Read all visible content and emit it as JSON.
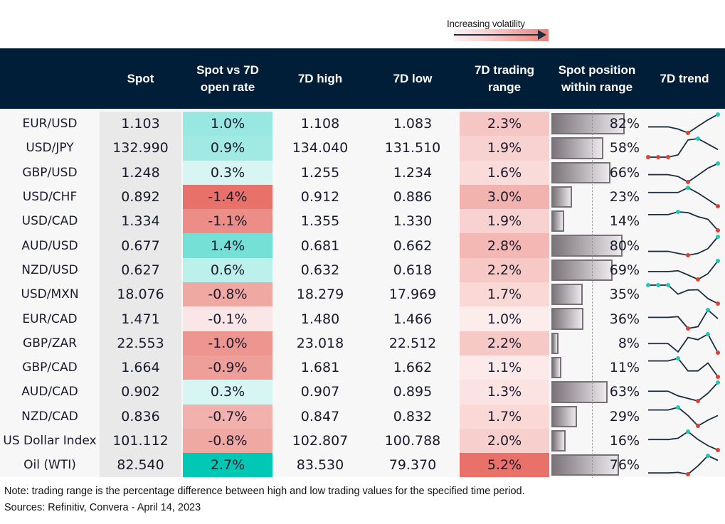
{
  "legend": {
    "label": "Increasing volatility"
  },
  "headers": [
    "",
    "Spot",
    "Spot vs 7D open rate",
    "7D high",
    "7D low",
    "7D trading range",
    "Spot position within range",
    "7D trend"
  ],
  "colors": {
    "header_bg": "#001e38",
    "positive_max": "#00c8b4",
    "negative_max": "#e8726a",
    "range_min": "#fcecec",
    "range_max": "#e8726a",
    "spark_line": "#1c2d3f",
    "spark_max": "#1fc8b4",
    "spark_min": "#e0402f"
  },
  "chart_data": {
    "type": "table",
    "rows": [
      {
        "pair": "EUR/USD",
        "spot": "1.103",
        "vs_open": "1.0%",
        "vs_open_value": 1.0,
        "high": "1.108",
        "low": "1.083",
        "range": "2.3%",
        "range_value": 2.3,
        "position": "82%",
        "position_value": 82,
        "trend": [
          0.33,
          0.33,
          0.33,
          0.21,
          0,
          0.36,
          0.71,
          1
        ]
      },
      {
        "pair": "USD/JPY",
        "spot": "132.990",
        "vs_open": "0.9%",
        "vs_open_value": 0.9,
        "high": "134.040",
        "low": "131.510",
        "range": "1.9%",
        "range_value": 1.9,
        "position": "58%",
        "position_value": 58,
        "trend": [
          0,
          0,
          0,
          0.12,
          0.93,
          1,
          0.71,
          0.41
        ]
      },
      {
        "pair": "GBP/USD",
        "spot": "1.248",
        "vs_open": "0.3%",
        "vs_open_value": 0.3,
        "high": "1.255",
        "low": "1.234",
        "range": "1.6%",
        "range_value": 1.6,
        "position": "66%",
        "position_value": 66,
        "trend": [
          0.4,
          0.4,
          0.4,
          0.3,
          0,
          0.37,
          0.75,
          1
        ]
      },
      {
        "pair": "USD/CHF",
        "spot": "0.892",
        "vs_open": "-1.4%",
        "vs_open_value": -1.4,
        "high": "0.912",
        "low": "0.886",
        "range": "3.0%",
        "range_value": 3.0,
        "position": "23%",
        "position_value": 23,
        "trend": [
          0.74,
          0.74,
          0.74,
          0.74,
          1,
          0.71,
          0.36,
          0
        ]
      },
      {
        "pair": "USD/CAD",
        "spot": "1.334",
        "vs_open": "-1.1%",
        "vs_open_value": -1.1,
        "high": "1.355",
        "low": "1.330",
        "range": "1.9%",
        "range_value": 1.9,
        "position": "14%",
        "position_value": 14,
        "trend": [
          0.85,
          0.85,
          0.85,
          1,
          0.96,
          0.74,
          0.6,
          0
        ]
      },
      {
        "pair": "AUD/USD",
        "spot": "0.677",
        "vs_open": "1.4%",
        "vs_open_value": 1.4,
        "high": "0.681",
        "low": "0.662",
        "range": "2.8%",
        "range_value": 2.8,
        "position": "80%",
        "position_value": 80,
        "trend": [
          0.21,
          0.21,
          0.21,
          0.1,
          0,
          0.1,
          0.36,
          1
        ]
      },
      {
        "pair": "NZD/USD",
        "spot": "0.627",
        "vs_open": "0.6%",
        "vs_open_value": 0.6,
        "high": "0.632",
        "low": "0.618",
        "range": "2.2%",
        "range_value": 2.2,
        "position": "69%",
        "position_value": 69,
        "trend": [
          0.42,
          0.42,
          0.42,
          0.47,
          0.24,
          0,
          0.31,
          1
        ]
      },
      {
        "pair": "USD/MXN",
        "spot": "18.076",
        "vs_open": "-0.8%",
        "vs_open_value": -0.8,
        "high": "18.279",
        "low": "17.969",
        "range": "1.7%",
        "range_value": 1.7,
        "position": "35%",
        "position_value": 35,
        "trend": [
          1,
          1,
          1,
          0.51,
          0.73,
          0.75,
          0.27,
          0
        ]
      },
      {
        "pair": "EUR/CAD",
        "spot": "1.471",
        "vs_open": "-0.1%",
        "vs_open_value": -0.1,
        "high": "1.480",
        "low": "1.466",
        "range": "1.0%",
        "range_value": 1.0,
        "position": "36%",
        "position_value": 36,
        "trend": [
          0.6,
          0.6,
          0.6,
          0.64,
          0,
          0.1,
          1,
          0.53
        ]
      },
      {
        "pair": "GBP/ZAR",
        "spot": "22.553",
        "vs_open": "-1.0%",
        "vs_open_value": -1.0,
        "high": "23.018",
        "low": "22.512",
        "range": "2.2%",
        "range_value": 2.2,
        "position": "8%",
        "position_value": 8,
        "trend": [
          0.49,
          0.49,
          0.49,
          0.04,
          0.82,
          0.7,
          1,
          0
        ]
      },
      {
        "pair": "GBP/CAD",
        "spot": "1.664",
        "vs_open": "-0.9%",
        "vs_open_value": -0.9,
        "high": "1.681",
        "low": "1.662",
        "range": "1.1%",
        "range_value": 1.1,
        "position": "11%",
        "position_value": 11,
        "trend": [
          0.86,
          0.86,
          0.86,
          1,
          0.32,
          0.32,
          0.75,
          0
        ]
      },
      {
        "pair": "AUD/CAD",
        "spot": "0.902",
        "vs_open": "0.3%",
        "vs_open_value": 0.3,
        "high": "0.907",
        "low": "0.895",
        "range": "1.3%",
        "range_value": 1.3,
        "position": "63%",
        "position_value": 63,
        "trend": [
          0.53,
          0.53,
          0.53,
          0.28,
          0.14,
          0,
          0.42,
          1
        ]
      },
      {
        "pair": "NZD/CAD",
        "spot": "0.836",
        "vs_open": "-0.7%",
        "vs_open_value": -0.7,
        "high": "0.847",
        "low": "0.832",
        "range": "1.7%",
        "range_value": 1.7,
        "position": "29%",
        "position_value": 29,
        "trend": [
          0.86,
          0.86,
          0.86,
          1,
          0.56,
          0,
          0.31,
          0.56
        ]
      },
      {
        "pair": "US Dollar Index",
        "spot": "101.112",
        "vs_open": "-0.8%",
        "vs_open_value": -0.8,
        "high": "102.807",
        "low": "100.788",
        "range": "2.0%",
        "range_value": 2.0,
        "position": "16%",
        "position_value": 16,
        "trend": [
          0.57,
          0.57,
          0.57,
          0.64,
          1,
          0.57,
          0.24,
          0
        ]
      },
      {
        "pair": "Oil (WTI)",
        "spot": "82.540",
        "vs_open": "2.7%",
        "vs_open_value": 2.7,
        "high": "83.530",
        "low": "79.370",
        "range": "5.2%",
        "range_value": 5.2,
        "position": "76%",
        "position_value": 76,
        "trend": [
          0.07,
          0.07,
          0.07,
          0.1,
          0,
          0.45,
          1,
          0.75
        ]
      }
    ]
  },
  "notes": {
    "note": "Note: trading range is the percentage difference between high and low trading values for the specified time period.",
    "sources": "Sources: Refinitiv, Convera - April 14, 2023"
  }
}
